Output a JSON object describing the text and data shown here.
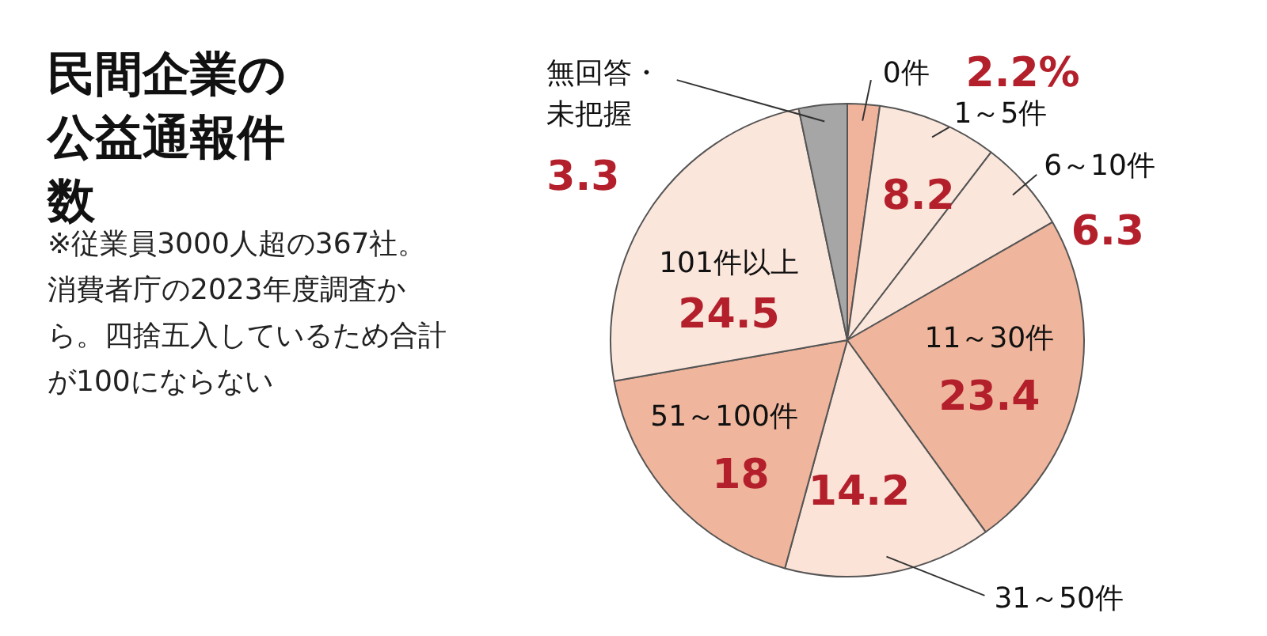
{
  "chart_data": {
    "type": "pie",
    "title": "民間企業の公益通報件数",
    "categories": [
      "0件",
      "1～5件",
      "6～10件",
      "11～30件",
      "31～50件",
      "51～100件",
      "101件以上",
      "無回答・未把握"
    ],
    "values": [
      2.2,
      8.2,
      6.3,
      23.4,
      14.2,
      18,
      24.5,
      3.3
    ],
    "value_labels": [
      "2.2%",
      "8.2",
      "6.3",
      "23.4",
      "14.2",
      "18",
      "24.5",
      "3.3"
    ],
    "colors": [
      "#f0b49c",
      "#fbe6dc",
      "#fbe6dc",
      "#efb69d",
      "#fbe3d7",
      "#efb69d",
      "#fbe6dc",
      "#a6a6a6"
    ],
    "annotations": [
      "※従業員3000人超の367社。消費者庁の2023年度調査から。四捨五入しているため合計が100にならない"
    ]
  }
}
